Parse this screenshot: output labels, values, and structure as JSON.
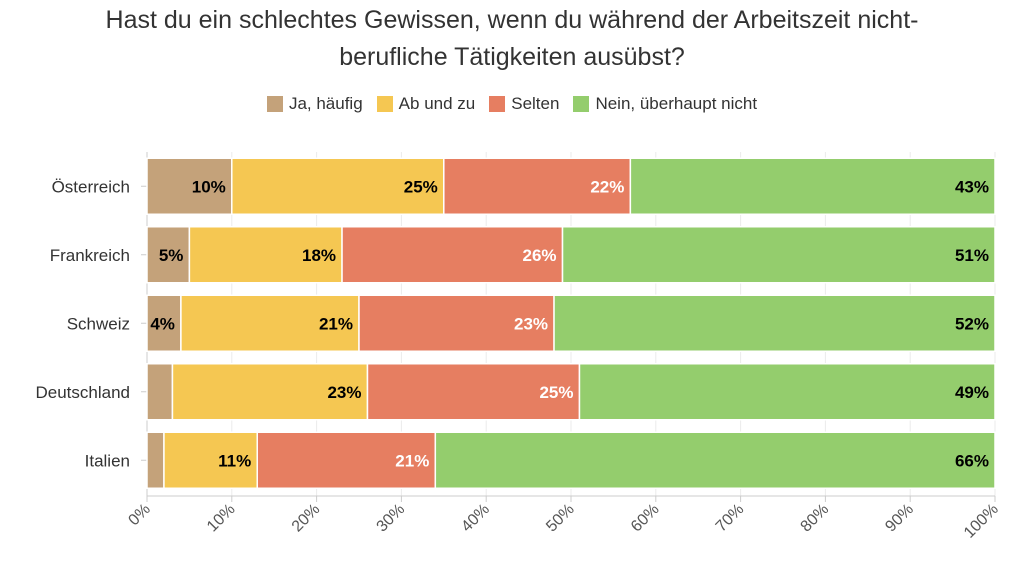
{
  "chart_data": {
    "type": "bar",
    "orientation": "horizontal",
    "stacked": true,
    "title": "Hast du ein schlechtes Gewissen, wenn du während der Arbeitszeit nicht-berufliche Tätigkeiten ausübst?",
    "title_lines": [
      "Hast du ein schlechtes Gewissen, wenn du während der Arbeitszeit nicht-",
      "berufliche Tätigkeiten ausübst?"
    ],
    "categories": [
      "Österreich",
      "Frankreich",
      "Schweiz",
      "Deutschland",
      "Italien"
    ],
    "series": [
      {
        "name": "Ja, häufig",
        "color": "#c4a27a",
        "values": [
          10,
          5,
          4,
          3,
          2
        ],
        "label_color": "#000000"
      },
      {
        "name": "Ab und zu",
        "color": "#f5c752",
        "values": [
          25,
          18,
          21,
          23,
          11
        ],
        "label_color": "#000000"
      },
      {
        "name": "Selten",
        "color": "#e67e61",
        "values": [
          22,
          26,
          23,
          25,
          21
        ],
        "label_color": "#ffffff"
      },
      {
        "name": "Nein, überhaupt nicht",
        "color": "#94cd6d",
        "values": [
          43,
          51,
          52,
          49,
          66
        ],
        "label_color": "#000000"
      }
    ],
    "xlim": [
      0,
      100
    ],
    "xticks": [
      "0%",
      "10%",
      "20%",
      "30%",
      "40%",
      "50%",
      "60%",
      "70%",
      "80%",
      "90%",
      "100%"
    ],
    "legend": "top"
  }
}
